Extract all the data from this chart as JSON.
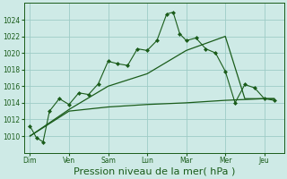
{
  "background_color": "#ceeae6",
  "grid_color": "#9eccc6",
  "line_color": "#1a5c1a",
  "xlabel": "Pression niveau de la mer( hPa )",
  "xlabel_fontsize": 8,
  "ylim": [
    1008.0,
    1026.0
  ],
  "yticks": [
    1010,
    1012,
    1014,
    1016,
    1018,
    1020,
    1022,
    1024
  ],
  "xtick_labels": [
    "Dim",
    "Ven",
    "Sam",
    "Lun",
    "Mar",
    "Mer",
    "Jeu"
  ],
  "xtick_positions": [
    0,
    2,
    4,
    6,
    8,
    10,
    12
  ],
  "xlim": [
    -0.3,
    13.0
  ],
  "series1_x": [
    0,
    0.33,
    0.67,
    1.0,
    1.5,
    2.0,
    2.5,
    3.0,
    3.5,
    4.0,
    4.5,
    5.0,
    5.5,
    6.0,
    6.5,
    7.0,
    7.33,
    7.67,
    8.0,
    8.5,
    9.0,
    9.5,
    10.0,
    10.5,
    11.0,
    11.5,
    12.0,
    12.5
  ],
  "series1_y": [
    1011.2,
    1009.8,
    1009.3,
    1013.0,
    1014.5,
    1013.8,
    1015.2,
    1015.0,
    1016.3,
    1019.0,
    1018.7,
    1018.5,
    1020.5,
    1020.3,
    1021.5,
    1024.7,
    1024.9,
    1022.3,
    1021.5,
    1021.8,
    1020.5,
    1020.0,
    1017.8,
    1014.0,
    1016.2,
    1015.8,
    1014.5,
    1014.3
  ],
  "series2_x": [
    0,
    2,
    4,
    6,
    8,
    10,
    12,
    12.5
  ],
  "series2_y": [
    1010.0,
    1013.0,
    1013.5,
    1013.8,
    1014.0,
    1014.3,
    1014.5,
    1014.5
  ],
  "series3_x": [
    0,
    2,
    4,
    6,
    8,
    10,
    11,
    12,
    12.5
  ],
  "series3_y": [
    1010.0,
    1013.2,
    1016.0,
    1017.5,
    1020.3,
    1022.0,
    1014.5,
    1014.5,
    1014.5
  ]
}
